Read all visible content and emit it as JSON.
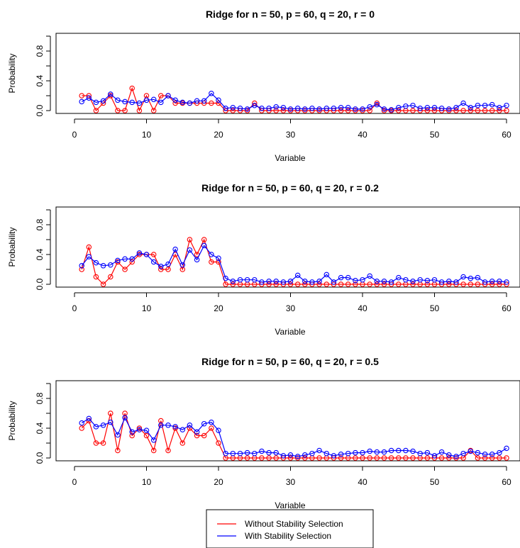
{
  "colors": {
    "without": "#ff0000",
    "with": "#0000ff",
    "axis": "#000000"
  },
  "legend": {
    "placement": "bottom-center",
    "items": [
      {
        "label": "Without Stability Selection",
        "color": "#ff0000"
      },
      {
        "label": "With Stability Selection",
        "color": "#0000ff"
      }
    ]
  },
  "chart_data": [
    {
      "type": "line",
      "title": "Ridge for n = 50, p = 60, q = 20, r = 0",
      "xlabel": "Variable",
      "ylabel": "Probability",
      "xlim": [
        0,
        61
      ],
      "ylim": [
        0,
        1
      ],
      "xticks": [
        0,
        10,
        20,
        30,
        40,
        50,
        60
      ],
      "yticks": [
        "0.0",
        "0.4",
        "0.8"
      ],
      "grid": false,
      "x": [
        1,
        2,
        3,
        4,
        5,
        6,
        7,
        8,
        9,
        10,
        11,
        12,
        13,
        14,
        15,
        16,
        17,
        18,
        19,
        20,
        21,
        22,
        23,
        24,
        25,
        26,
        27,
        28,
        29,
        30,
        31,
        32,
        33,
        34,
        35,
        36,
        37,
        38,
        39,
        40,
        41,
        42,
        43,
        44,
        45,
        46,
        47,
        48,
        49,
        50,
        51,
        52,
        53,
        54,
        55,
        56,
        57,
        58,
        59,
        60
      ],
      "series": [
        {
          "name": "Without Stability Selection",
          "color": "#ff0000",
          "values": [
            0.2,
            0.2,
            0,
            0.1,
            0.2,
            0,
            0,
            0.3,
            0,
            0.2,
            0,
            0.2,
            0.2,
            0.1,
            0.1,
            0.1,
            0.1,
            0.1,
            0.1,
            0.1,
            0,
            0,
            0,
            0,
            0.1,
            0,
            0,
            0,
            0,
            0,
            0,
            0,
            0,
            0,
            0,
            0,
            0,
            0,
            0,
            0,
            0,
            0.1,
            0,
            0,
            0,
            0,
            0,
            0,
            0,
            0,
            0,
            0,
            0,
            0,
            0,
            0,
            0,
            0,
            0,
            0
          ]
        },
        {
          "name": "With Stability Selection",
          "color": "#0000ff",
          "values": [
            0.12,
            0.17,
            0.11,
            0.13,
            0.22,
            0.14,
            0.12,
            0.11,
            0.1,
            0.14,
            0.15,
            0.11,
            0.2,
            0.14,
            0.11,
            0.1,
            0.13,
            0.13,
            0.23,
            0.14,
            0.03,
            0.04,
            0.03,
            0.02,
            0.07,
            0.03,
            0.03,
            0.05,
            0.04,
            0.02,
            0.03,
            0.02,
            0.03,
            0.02,
            0.03,
            0.03,
            0.04,
            0.04,
            0.02,
            0.02,
            0.05,
            0.08,
            0.02,
            0.01,
            0.04,
            0.06,
            0.07,
            0.03,
            0.04,
            0.04,
            0.03,
            0.02,
            0.04,
            0.1,
            0.04,
            0.07,
            0.07,
            0.08,
            0.04,
            0.07
          ]
        }
      ]
    },
    {
      "type": "line",
      "title": "Ridge for n = 50, p = 60, q = 20, r = 0.2",
      "xlabel": "Variable",
      "ylabel": "Probability",
      "xlim": [
        0,
        61
      ],
      "ylim": [
        0,
        1
      ],
      "xticks": [
        0,
        10,
        20,
        30,
        40,
        50,
        60
      ],
      "yticks": [
        "0.0",
        "0.4",
        "0.8"
      ],
      "grid": false,
      "x": [
        1,
        2,
        3,
        4,
        5,
        6,
        7,
        8,
        9,
        10,
        11,
        12,
        13,
        14,
        15,
        16,
        17,
        18,
        19,
        20,
        21,
        22,
        23,
        24,
        25,
        26,
        27,
        28,
        29,
        30,
        31,
        32,
        33,
        34,
        35,
        36,
        37,
        38,
        39,
        40,
        41,
        42,
        43,
        44,
        45,
        46,
        47,
        48,
        49,
        50,
        51,
        52,
        53,
        54,
        55,
        56,
        57,
        58,
        59,
        60
      ],
      "series": [
        {
          "name": "Without Stability Selection",
          "color": "#ff0000",
          "values": [
            0.2,
            0.5,
            0.1,
            0,
            0.1,
            0.3,
            0.2,
            0.3,
            0.4,
            0.4,
            0.4,
            0.2,
            0.2,
            0.4,
            0.2,
            0.6,
            0.4,
            0.6,
            0.3,
            0.3,
            0,
            0,
            0,
            0,
            0,
            0,
            0,
            0,
            0,
            0,
            0,
            0,
            0,
            0,
            0,
            0,
            0,
            0,
            0,
            0,
            0,
            0,
            0,
            0,
            0,
            0,
            0,
            0,
            0,
            0,
            0,
            0,
            0,
            0,
            0,
            0,
            0,
            0,
            0,
            0
          ]
        },
        {
          "name": "With Stability Selection",
          "color": "#0000ff",
          "values": [
            0.25,
            0.37,
            0.29,
            0.25,
            0.26,
            0.32,
            0.34,
            0.34,
            0.42,
            0.4,
            0.3,
            0.24,
            0.27,
            0.47,
            0.26,
            0.46,
            0.33,
            0.52,
            0.4,
            0.35,
            0.08,
            0.04,
            0.06,
            0.06,
            0.06,
            0.03,
            0.04,
            0.04,
            0.03,
            0.04,
            0.12,
            0.04,
            0.03,
            0.04,
            0.13,
            0.03,
            0.09,
            0.09,
            0.05,
            0.06,
            0.11,
            0.04,
            0.04,
            0.03,
            0.09,
            0.06,
            0.04,
            0.06,
            0.05,
            0.06,
            0.03,
            0.04,
            0.03,
            0.1,
            0.08,
            0.09,
            0.03,
            0.04,
            0.04,
            0.03
          ]
        }
      ]
    },
    {
      "type": "line",
      "title": "Ridge for n = 50, p = 60, q = 20, r = 0.5",
      "xlabel": "Variable",
      "ylabel": "Probability",
      "xlim": [
        0,
        61
      ],
      "ylim": [
        0,
        1
      ],
      "xticks": [
        0,
        10,
        20,
        30,
        40,
        50,
        60
      ],
      "yticks": [
        "0.0",
        "0.4",
        "0.8"
      ],
      "grid": false,
      "x": [
        1,
        2,
        3,
        4,
        5,
        6,
        7,
        8,
        9,
        10,
        11,
        12,
        13,
        14,
        15,
        16,
        17,
        18,
        19,
        20,
        21,
        22,
        23,
        24,
        25,
        26,
        27,
        28,
        29,
        30,
        31,
        32,
        33,
        34,
        35,
        36,
        37,
        38,
        39,
        40,
        41,
        42,
        43,
        44,
        45,
        46,
        47,
        48,
        49,
        50,
        51,
        52,
        53,
        54,
        55,
        56,
        57,
        58,
        59,
        60
      ],
      "series": [
        {
          "name": "Without Stability Selection",
          "color": "#ff0000",
          "values": [
            0.4,
            0.5,
            0.2,
            0.2,
            0.6,
            0.1,
            0.6,
            0.3,
            0.4,
            0.3,
            0.1,
            0.5,
            0.1,
            0.4,
            0.2,
            0.4,
            0.3,
            0.3,
            0.4,
            0.2,
            0,
            0,
            0,
            0,
            0,
            0,
            0,
            0,
            0,
            0,
            0,
            0,
            0,
            0,
            0,
            0,
            0,
            0,
            0,
            0,
            0,
            0,
            0,
            0,
            0,
            0,
            0,
            0,
            0,
            0,
            0,
            0,
            0,
            0,
            0.1,
            0,
            0,
            0,
            0,
            0
          ]
        },
        {
          "name": "With Stability Selection",
          "color": "#0000ff",
          "values": [
            0.47,
            0.53,
            0.42,
            0.44,
            0.48,
            0.31,
            0.54,
            0.35,
            0.38,
            0.37,
            0.24,
            0.44,
            0.44,
            0.42,
            0.38,
            0.44,
            0.35,
            0.46,
            0.48,
            0.37,
            0.06,
            0.06,
            0.06,
            0.07,
            0.06,
            0.09,
            0.07,
            0.07,
            0.03,
            0.04,
            0.02,
            0.04,
            0.06,
            0.1,
            0.06,
            0.03,
            0.05,
            0.06,
            0.07,
            0.07,
            0.09,
            0.08,
            0.08,
            0.1,
            0.1,
            0.1,
            0.09,
            0.06,
            0.07,
            0.03,
            0.08,
            0.04,
            0.02,
            0.06,
            0.09,
            0.07,
            0.05,
            0.05,
            0.07,
            0.13
          ]
        }
      ]
    }
  ]
}
